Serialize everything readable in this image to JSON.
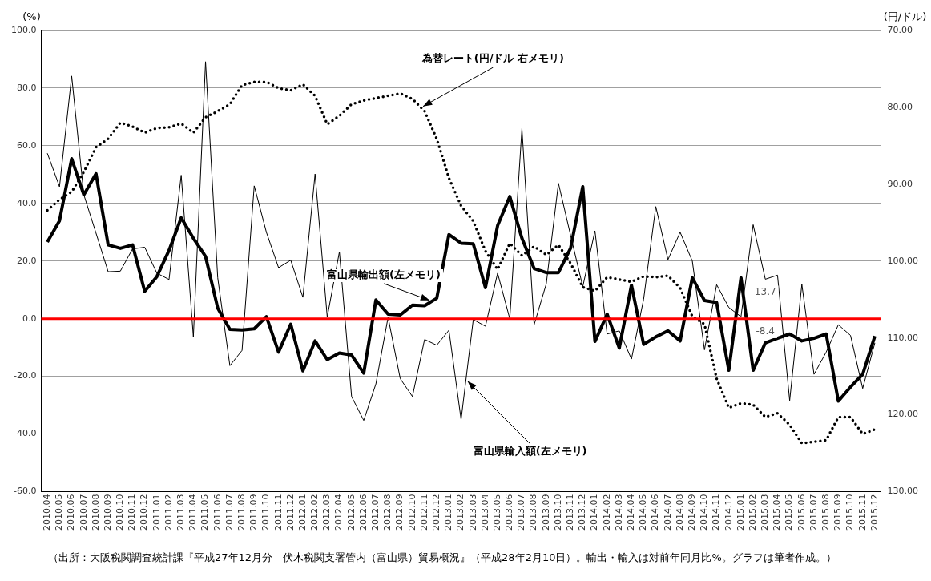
{
  "chart_data": {
    "type": "line",
    "ylabel": "(%)",
    "y2label": "(円/ドル)",
    "categories": [
      "2010.04",
      "2010.05",
      "2010.06",
      "2010.07",
      "2010.08",
      "2010.09",
      "2010.10",
      "2010.11",
      "2010.12",
      "2011.01",
      "2011.02",
      "2011.03",
      "2011.04",
      "2011.05",
      "2011.06",
      "2011.07",
      "2011.08",
      "2011.09",
      "2011.10",
      "2011.11",
      "2011.12",
      "2012.01",
      "2012.02",
      "2012.03",
      "2012.04",
      "2012.05",
      "2012.06",
      "2012.07",
      "2012.08",
      "2012.09",
      "2012.10",
      "2012.11",
      "2012.12",
      "2013.01",
      "2013.02",
      "2013.03",
      "2013.04",
      "2013.05",
      "2013.06",
      "2013.07",
      "2013.08",
      "2013.09",
      "2013.10",
      "2013.11",
      "2013.12",
      "2014.01",
      "2014.02",
      "2014.03",
      "2014.04",
      "2014.05",
      "2014.06",
      "2014.07",
      "2014.08",
      "2014.09",
      "2014.10",
      "2014.11",
      "2014.12",
      "2015.01",
      "2015.02",
      "2015.03",
      "2015.04",
      "2015.05",
      "2015.06",
      "2015.07",
      "2015.08",
      "2015.09",
      "2015.10",
      "2015.11",
      "2015.12"
    ],
    "series": [
      {
        "name": "富山県輸出額(左メモリ)",
        "color": "#000000",
        "line_style": "solid",
        "values": [
          26.6,
          34,
          55.5,
          43,
          50.3,
          25.6,
          24.4,
          25.6,
          9.5,
          14.6,
          23.7,
          35,
          27.9,
          21.6,
          3.7,
          -3.7,
          -3.9,
          -3.5,
          0.7,
          -11.6,
          -1.9,
          -18.1,
          -7.7,
          -14.2,
          -11.9,
          -12.6,
          -18.9,
          6.5,
          1.6,
          1.3,
          4.7,
          4.5,
          7.1,
          29.2,
          26.2,
          26,
          10.8,
          32.3,
          42.4,
          27.9,
          17.4,
          16,
          16,
          24.5,
          45.8,
          -7.9,
          1.6,
          -10.2,
          11.6,
          -8.9,
          -6.3,
          -4.2,
          -7.7,
          14.2,
          6.3,
          5.6,
          -17.9,
          14.2,
          -17.9,
          -8.4,
          -6.8,
          -5.3,
          -7.7,
          -6.8,
          -5.3,
          -28.6,
          -23.7,
          -19.3,
          -6
        ],
        "value_labels": [
          null,
          null,
          null,
          null,
          null,
          null,
          null,
          null,
          null,
          null,
          null,
          null,
          null,
          null,
          null,
          null,
          null,
          null,
          null,
          null,
          null,
          null,
          null,
          null,
          null,
          null,
          null,
          null,
          null,
          null,
          null,
          null,
          null,
          null,
          null,
          null,
          null,
          null,
          null,
          null,
          null,
          null,
          null,
          null,
          null,
          null,
          null,
          null,
          null,
          null,
          null,
          null,
          null,
          null,
          null,
          null,
          null,
          null,
          null,
          "-8.4",
          null,
          null,
          null,
          null,
          null,
          null,
          null,
          null,
          null
        ]
      },
      {
        "name": "富山県輸入額(左メモリ)",
        "color": "#000000",
        "line_style": "solid",
        "values": [
          57.4,
          45.8,
          84.2,
          43,
          29.7,
          16.3,
          16.5,
          24.2,
          24.8,
          15.8,
          13.6,
          49.8,
          -6.3,
          89.2,
          14.2,
          -16.3,
          -11,
          46.1,
          30,
          17.7,
          20.3,
          7.4,
          50.2,
          0.6,
          23.2,
          -27,
          -35.3,
          -22.6,
          0.5,
          -20.8,
          -27,
          -7.2,
          -9.2,
          -4,
          -35,
          -0.3,
          -2.6,
          15.8,
          0,
          66,
          -2.1,
          12.1,
          47,
          28.9,
          11.1,
          30.5,
          -5.3,
          -4.2,
          -14,
          6.8,
          38.9,
          20.5,
          30,
          20,
          -10.8,
          11.8,
          3.9,
          0.7,
          32.6,
          13.7,
          15.1,
          -28.4,
          11.9,
          -19.3,
          -11.6,
          -2.1,
          -5.8,
          -24.2,
          -8.4
        ],
        "value_labels": [
          null,
          null,
          null,
          null,
          null,
          null,
          null,
          null,
          null,
          null,
          null,
          null,
          null,
          null,
          null,
          null,
          null,
          null,
          null,
          null,
          null,
          null,
          null,
          null,
          null,
          null,
          null,
          null,
          null,
          null,
          null,
          null,
          null,
          null,
          null,
          null,
          null,
          null,
          null,
          null,
          null,
          null,
          null,
          null,
          null,
          null,
          null,
          null,
          null,
          null,
          null,
          null,
          null,
          null,
          null,
          null,
          null,
          null,
          null,
          "13.7",
          null,
          null,
          null,
          null,
          null,
          null,
          null,
          null,
          null
        ]
      },
      {
        "name": "為替レート(円/ドル 右メモリ)",
        "color": "#000000",
        "line_style": "dotted",
        "axis": "y2",
        "values": [
          93.4,
          92,
          91,
          88.4,
          85.2,
          84.1,
          82,
          82.5,
          83.3,
          82.7,
          82.6,
          82.1,
          83.3,
          81.3,
          80.5,
          79.6,
          77.1,
          76.7,
          76.7,
          77.5,
          77.8,
          77,
          78.5,
          82.2,
          81.1,
          79.6,
          79.1,
          78.8,
          78.5,
          78.2,
          78.9,
          80.5,
          84.1,
          89.2,
          92.8,
          94.8,
          98.7,
          101.1,
          97.7,
          99.3,
          98.1,
          99.2,
          97.9,
          100.3,
          103.4,
          103.9,
          102.1,
          102.4,
          102.7,
          102,
          102.1,
          101.9,
          103.5,
          107.2,
          108.2,
          115.3,
          119.1,
          118.5,
          118.7,
          120.3,
          119.8,
          121.3,
          123.7,
          123.5,
          123.3,
          120.3,
          120.3,
          122.5,
          121.9
        ]
      }
    ],
    "ylim": [
      -60,
      100
    ],
    "yticks": [
      {
        "value": -60,
        "label": "-60.0"
      },
      {
        "value": -40,
        "label": "-40.0"
      },
      {
        "value": -20,
        "label": "-20.0"
      },
      {
        "value": 0,
        "label": "0.0"
      },
      {
        "value": 20,
        "label": "20.0"
      },
      {
        "value": 40,
        "label": "40.0"
      },
      {
        "value": 60,
        "label": "60.0"
      },
      {
        "value": 80,
        "label": "80.0"
      },
      {
        "value": 100,
        "label": "100.0"
      }
    ],
    "y2lim": [
      130,
      70
    ],
    "y2ticks": [
      {
        "value": 70,
        "label": "70.00"
      },
      {
        "value": 80,
        "label": "80.00"
      },
      {
        "value": 90,
        "label": "90.00"
      },
      {
        "value": 100,
        "label": "100.00"
      },
      {
        "value": 110,
        "label": "110.00"
      },
      {
        "value": 120,
        "label": "120.00"
      },
      {
        "value": 130,
        "label": "130.00"
      }
    ],
    "ref_lines": [
      {
        "axis": "y",
        "value": 0,
        "color": "#ff0000"
      }
    ],
    "grid": "y",
    "legend": false,
    "marker": "none",
    "annotations": [
      "（出所：大阪税関調査統計課『平成27年12月分　伏木税関支署管内（富山県）貿易概況』（平成28年2月10日）。輸出・輸入は対前年同月比%。グラフは筆者作成。）"
    ]
  }
}
